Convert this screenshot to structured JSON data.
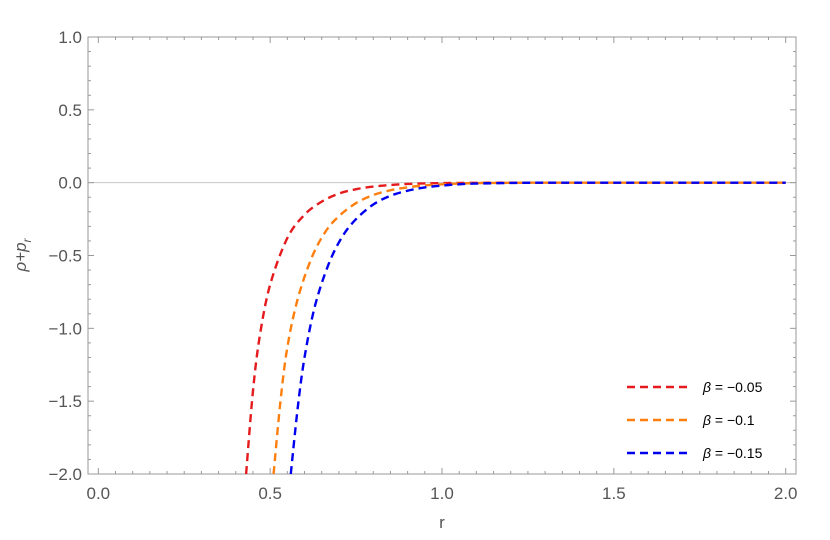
{
  "chart_data": {
    "type": "line",
    "xlabel": "r",
    "ylabel": {
      "base": "ρ+p",
      "sub": "r"
    },
    "xlim": [
      -0.03,
      2.03
    ],
    "ylim": [
      -2.0,
      1.0
    ],
    "x_ticks": [
      {
        "value": 0.0,
        "label": "0.0"
      },
      {
        "value": 0.5,
        "label": "0.5"
      },
      {
        "value": 1.0,
        "label": "1.0"
      },
      {
        "value": 1.5,
        "label": "1.5"
      },
      {
        "value": 2.0,
        "label": "2.0"
      }
    ],
    "y_ticks": [
      {
        "value": 1.0,
        "label": "1.0"
      },
      {
        "value": 0.5,
        "label": "0.5"
      },
      {
        "value": 0.0,
        "label": "0.0"
      },
      {
        "value": -0.5,
        "label": "−0.5"
      },
      {
        "value": -1.0,
        "label": "−1.0"
      },
      {
        "value": -1.5,
        "label": "−1.5"
      },
      {
        "value": -2.0,
        "label": "−2.0"
      }
    ],
    "zero_line": true,
    "grid": false,
    "legend_position": "bottom-right",
    "series": [
      {
        "name": "β = −0.05",
        "color": "#e41a1c",
        "dash": "dashed",
        "x": [
          0.43,
          0.45,
          0.47,
          0.5,
          0.55,
          0.6,
          0.65,
          0.7,
          0.75,
          0.8,
          0.85,
          0.9,
          0.95,
          1.0,
          1.1,
          1.2,
          1.3,
          1.5,
          1.75,
          2.0
        ],
        "y": [
          -2.0,
          -1.43,
          -1.05,
          -0.7,
          -0.38,
          -0.22,
          -0.13,
          -0.075,
          -0.045,
          -0.027,
          -0.016,
          -0.009,
          -0.005,
          -0.003,
          -0.001,
          0.0,
          0.0,
          0.0,
          0.0,
          0.0
        ]
      },
      {
        "name": "β = −0.1",
        "color": "#ff7f0e",
        "dash": "dashed",
        "x": [
          0.51,
          0.53,
          0.55,
          0.58,
          0.62,
          0.66,
          0.7,
          0.75,
          0.8,
          0.85,
          0.9,
          0.95,
          1.0,
          1.05,
          1.1,
          1.2,
          1.3,
          1.5,
          1.75,
          2.0
        ],
        "y": [
          -2.0,
          -1.5,
          -1.13,
          -0.8,
          -0.52,
          -0.34,
          -0.23,
          -0.14,
          -0.085,
          -0.052,
          -0.032,
          -0.019,
          -0.011,
          -0.006,
          -0.003,
          -0.001,
          0.0,
          0.0,
          0.0,
          0.0
        ]
      },
      {
        "name": "β = −0.15",
        "color": "#0000ee",
        "dash": "dashed",
        "x": [
          0.56,
          0.58,
          0.6,
          0.63,
          0.67,
          0.71,
          0.75,
          0.8,
          0.85,
          0.9,
          0.95,
          1.0,
          1.05,
          1.1,
          1.2,
          1.3,
          1.5,
          1.75,
          2.0
        ],
        "y": [
          -2.0,
          -1.55,
          -1.2,
          -0.85,
          -0.56,
          -0.37,
          -0.25,
          -0.15,
          -0.09,
          -0.055,
          -0.033,
          -0.02,
          -0.011,
          -0.006,
          -0.002,
          0.0,
          0.0,
          0.0,
          0.0
        ]
      }
    ]
  }
}
